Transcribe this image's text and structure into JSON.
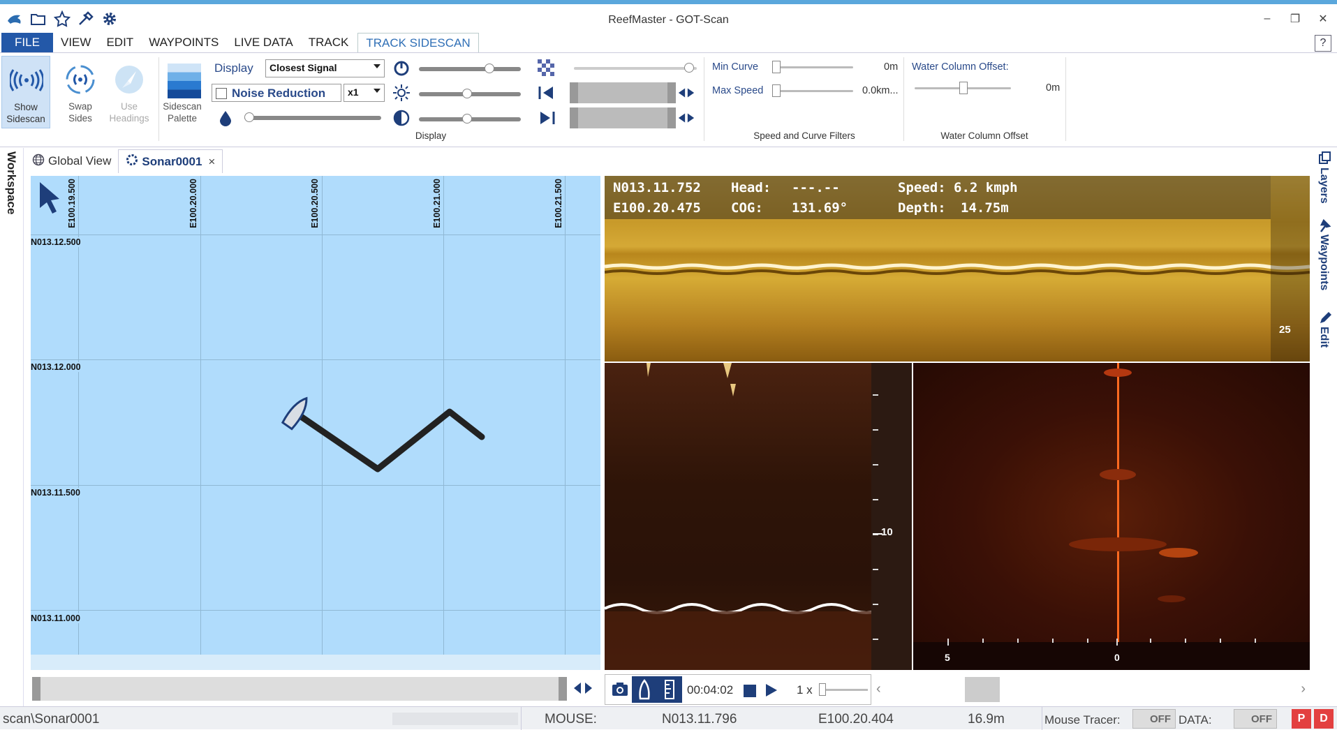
{
  "window": {
    "title": "ReefMaster - GOT-Scan"
  },
  "menu": [
    "FILE",
    "VIEW",
    "EDIT",
    "WAYPOINTS",
    "LIVE DATA",
    "TRACK",
    "TRACK SIDESCAN"
  ],
  "help_label": "?",
  "ribbon": {
    "show_sidescan": "Show Sidescan",
    "swap_sides": "Swap Sides",
    "use_headings": "Use Headings",
    "sidescan_palette": "Sidescan Palette",
    "display_label": "Display",
    "display_value": "Closest Signal",
    "noise_reduction": "Noise Reduction",
    "multiplier": "x1",
    "display_group": "Display",
    "min_curve": "Min Curve",
    "min_curve_value": "0m",
    "max_speed": "Max Speed",
    "max_speed_value": "0.0km...",
    "speed_group": "Speed and Curve Filters",
    "water_offset_label": "Water Column Offset:",
    "water_offset_value": "0m",
    "water_group": "Water Column Offset"
  },
  "tabs": [
    {
      "label": "Global View"
    },
    {
      "label": "Sonar0001",
      "close": "×"
    }
  ],
  "side_left": "Workspace",
  "side_right": [
    "Layers",
    "Waypoints",
    "Edit"
  ],
  "map": {
    "lon_labels": [
      "E100.19.500",
      "E100.20.000",
      "E100.20.500",
      "E100.21.000",
      "E100.21.500"
    ],
    "lat_labels": [
      "N013.12.500",
      "N013.12.000",
      "N013.11.500",
      "N013.11.000"
    ]
  },
  "sonar_info": {
    "lat": "N013.11.752",
    "lon": "E100.20.475",
    "head_label": "Head:",
    "head_value": "---.--",
    "cog_label": "COG:",
    "cog_value": "131.69°",
    "speed_label": "Speed:",
    "speed_value": "6.2 kmph",
    "depth_label": "Depth:",
    "depth_value": "14.75m",
    "top_scale": "25",
    "depth_scale": "10",
    "side_scale_left": "5",
    "side_scale_center": "0"
  },
  "playback": {
    "time": "00:04:02",
    "speed": "1 x"
  },
  "status": {
    "path": "scan\\Sonar0001",
    "mouse_label": "MOUSE:",
    "mouse_lat": "N013.11.796",
    "mouse_lon": "E100.20.404",
    "mouse_depth": "16.9m",
    "tracer_label": "Mouse Tracer:",
    "tracer_state": "OFF",
    "data_label": "DATA:",
    "data_state": "OFF",
    "p": "P",
    "d": "D"
  },
  "colors": {
    "accent": "#2358a8",
    "map_bg": "#b0dcfc",
    "track": "#222222"
  }
}
